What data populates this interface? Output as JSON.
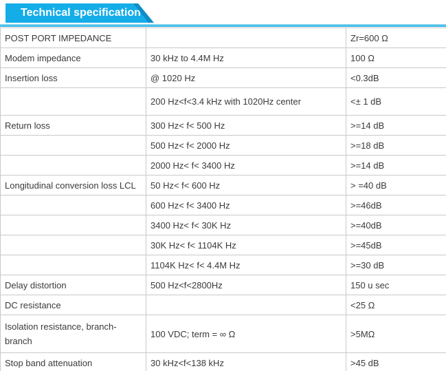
{
  "header": {
    "title": "Technical specification"
  },
  "colors": {
    "banner": "#14ade8",
    "banner_fold": "#0e8dc7",
    "accent_bar": "#18a9e2",
    "table_border": "#c9c9c9",
    "text": "#3a3a3a"
  },
  "table": {
    "rows": [
      [
        "POST PORT IMPEDANCE",
        "",
        "Zr=600 Ω"
      ],
      [
        "Modem impedance",
        "30 kHz to 4.4M Hz",
        "100 Ω"
      ],
      [
        "Insertion loss",
        "@ 1020 Hz",
        "<0.3dB"
      ],
      [
        "",
        "200 Hz<f<3.4 kHz with 1020Hz center",
        "<± 1 dB"
      ],
      [
        "Return loss",
        "300 Hz< f< 500 Hz",
        ">=14 dB"
      ],
      [
        "",
        "500 Hz< f< 2000 Hz",
        ">=18 dB"
      ],
      [
        "",
        "2000 Hz< f< 3400 Hz",
        ">=14 dB"
      ],
      [
        "Longitudinal conversion loss LCL",
        "50 Hz< f< 600 Hz",
        "> =40 dB"
      ],
      [
        "",
        "600 Hz< f< 3400 Hz",
        ">=46dB"
      ],
      [
        "",
        "3400 Hz< f< 30K Hz",
        ">=40dB"
      ],
      [
        "",
        "30K Hz< f< 1104K Hz",
        ">=45dB"
      ],
      [
        "",
        "1104K Hz< f< 4.4M Hz",
        ">=30 dB"
      ],
      [
        "Delay distortion",
        "500 Hz<f<2800Hz",
        "150 u sec"
      ],
      [
        "DC resistance",
        "",
        "<25 Ω"
      ],
      [
        "Isolation resistance, branch-branch",
        "100 VDC; term = ∞ Ω",
        ">5MΩ"
      ],
      [
        "Stop band attenuation",
        "30 kHz<f<138 kHz",
        ">45 dB"
      ]
    ]
  }
}
